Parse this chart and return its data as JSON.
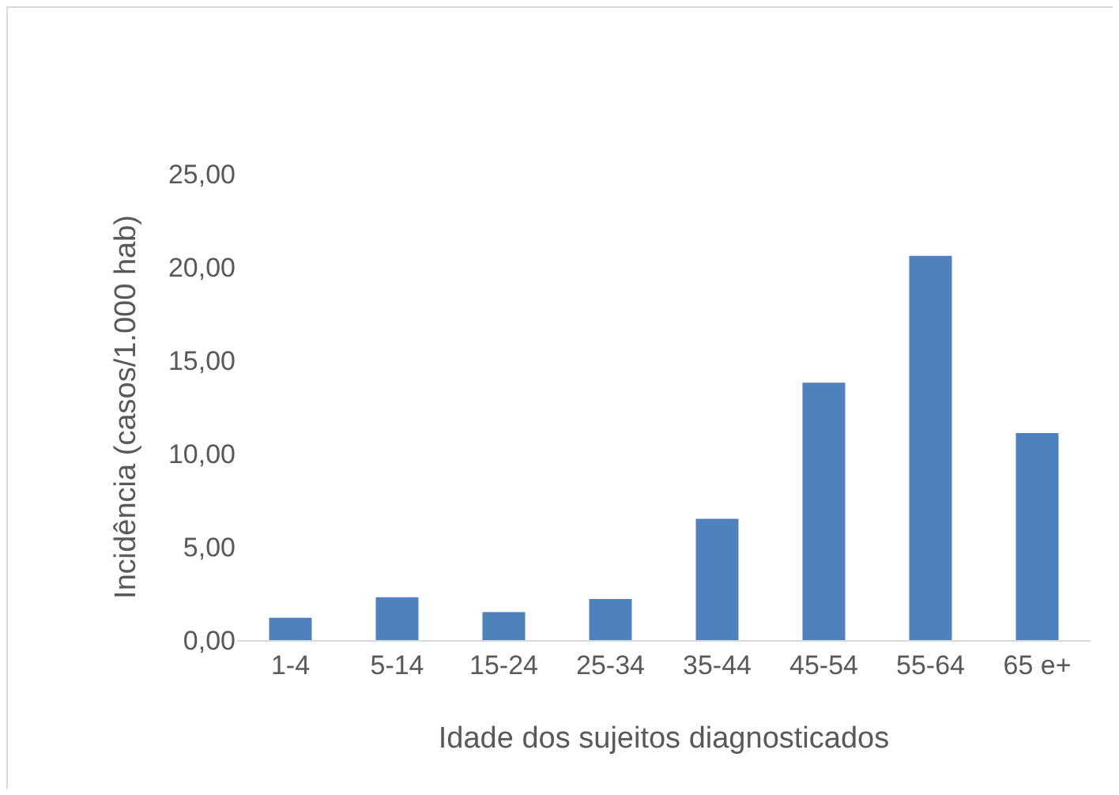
{
  "chart_data": {
    "type": "bar",
    "xlabel": "Idade dos sujeitos diagnosticados",
    "ylabel": "Incidência (casos/1.000 hab)",
    "categories": [
      "1-4",
      "5-14",
      "15-24",
      "25-34",
      "35-44",
      "45-54",
      "55-64",
      "65 e+"
    ],
    "values": [
      1.2,
      2.3,
      1.5,
      2.2,
      6.5,
      13.8,
      20.6,
      11.1
    ],
    "color": "#4f81bd",
    "ylim": [
      0,
      25
    ],
    "yticks": [
      {
        "value": 0,
        "label": "0,00"
      },
      {
        "value": 5,
        "label": "5,00"
      },
      {
        "value": 10,
        "label": "10,00"
      },
      {
        "value": 15,
        "label": "15,00"
      },
      {
        "value": 20,
        "label": "20,00"
      },
      {
        "value": 25,
        "label": "25,00"
      }
    ],
    "grid": false,
    "legend": false
  }
}
